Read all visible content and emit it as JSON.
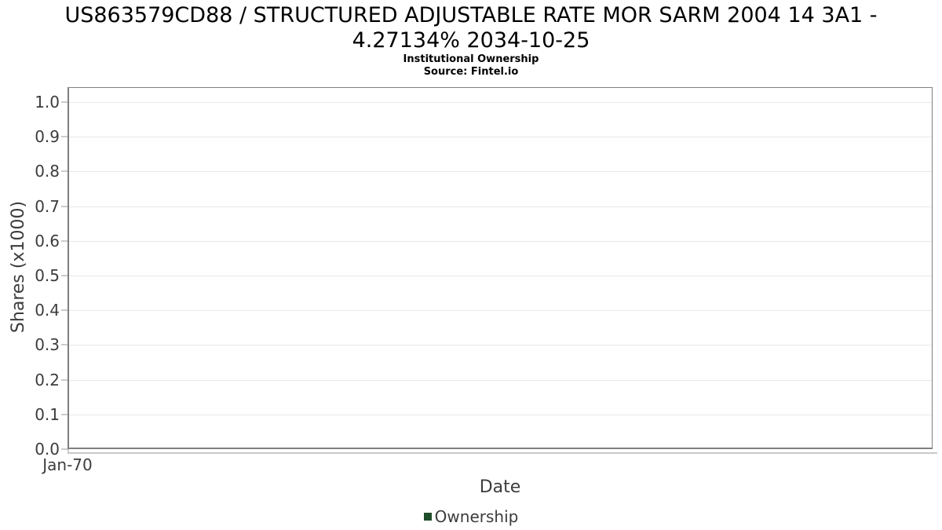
{
  "header": {
    "title_line1": "US863579CD88 / STRUCTURED ADJUSTABLE RATE MOR SARM 2004 14 3A1 -",
    "title_line2": "4.27134% 2034-10-25",
    "subtitle": "Institutional Ownership",
    "source": "Source: Fintel.io"
  },
  "chart_data": {
    "type": "line",
    "title": "US863579CD88 / STRUCTURED ADJUSTABLE RATE MOR SARM 2004 14 3A1 - 4.27134% 2034-10-25",
    "subtitle": "Institutional Ownership",
    "source": "Source: Fintel.io",
    "xlabel": "Date",
    "ylabel": "Shares (x1000)",
    "xticks": [
      "Jan-70"
    ],
    "yticks": [
      "0.0",
      "0.1",
      "0.2",
      "0.3",
      "0.4",
      "0.5",
      "0.6",
      "0.7",
      "0.8",
      "0.9",
      "1.0"
    ],
    "ylim": [
      0.0,
      1.04
    ],
    "grid": "horizontal",
    "legend": {
      "position": "bottom",
      "entries": [
        {
          "label": "Ownership",
          "color": "#1e4d2a"
        }
      ]
    },
    "series": [
      {
        "name": "Ownership",
        "x": [],
        "y": []
      }
    ]
  },
  "colors": {
    "plot_border": "#7f7f7f",
    "gridline": "#e8e8e8",
    "tick": "#c9c9c9",
    "axis_text": "#3c3c3c",
    "title_text": "#000000",
    "legend_green": "#1e4d2a",
    "background": "#ffffff"
  }
}
